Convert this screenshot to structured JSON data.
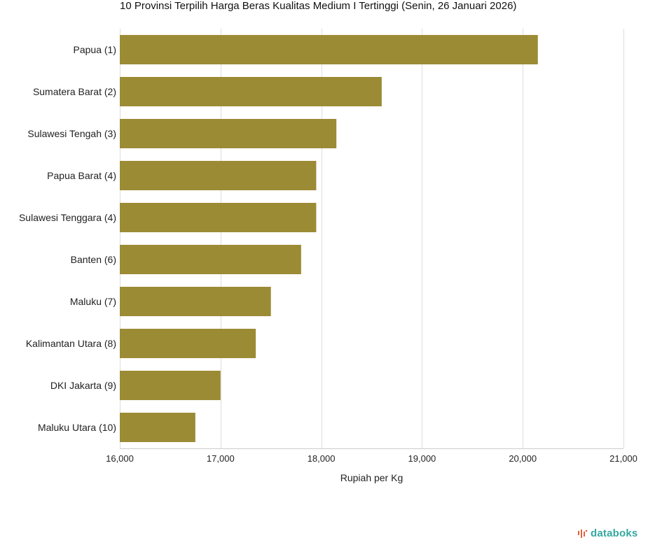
{
  "title": "10 Provinsi Terpilih Harga Beras Kualitas Medium I Tertinggi (Senin, 26 Januari 2026)",
  "brand": "databoks",
  "colors": {
    "bar": "#9c8b35",
    "grid": "#dddddd",
    "brand": "#35a7a0",
    "brand_mark": "#e0623c"
  },
  "chart_data": {
    "type": "bar",
    "orientation": "horizontal",
    "title": "10 Provinsi Terpilih Harga Beras Kualitas Medium I Tertinggi (Senin, 26 Januari 2026)",
    "categories": [
      "Papua (1)",
      "Sumatera Barat (2)",
      "Sulawesi Tengah (3)",
      "Papua Barat (4)",
      "Sulawesi Tenggara (4)",
      "Banten (6)",
      "Maluku (7)",
      "Kalimantan Utara (8)",
      "DKI Jakarta (9)",
      "Maluku Utara (10)"
    ],
    "values": [
      20150,
      18600,
      18150,
      17950,
      17950,
      17800,
      17500,
      17350,
      17000,
      16750
    ],
    "xlabel": "Rupiah per Kg",
    "ylabel": "",
    "xlim": [
      16000,
      21000
    ],
    "xticks": [
      16000,
      17000,
      18000,
      19000,
      20000,
      21000
    ],
    "xtick_labels": [
      "16,000",
      "17,000",
      "18,000",
      "19,000",
      "20,000",
      "21,000"
    ],
    "grid": true,
    "legend": "none"
  }
}
